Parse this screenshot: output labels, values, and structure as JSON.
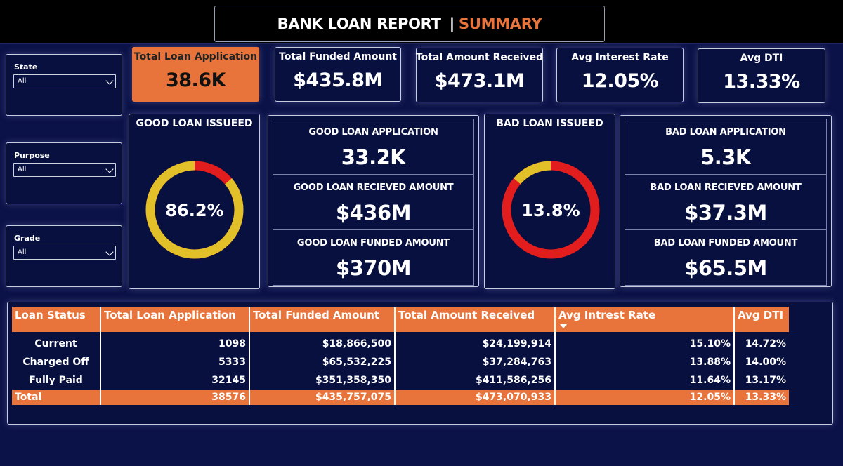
{
  "header": {
    "title": "BANK LOAN REPORT",
    "separator": "|",
    "subtitle": "SUMMARY"
  },
  "filters": [
    {
      "label": "State",
      "value": "All"
    },
    {
      "label": "Purpose",
      "value": "All"
    },
    {
      "label": "Grade",
      "value": "All"
    }
  ],
  "kpis": [
    {
      "label": "Total Loan Application",
      "value": "38.6K"
    },
    {
      "label": "Total Funded Amount",
      "value": "$435.8M"
    },
    {
      "label": "Total Amount Received",
      "value": "$473.1M"
    },
    {
      "label": "Avg Interest Rate",
      "value": "12.05%"
    },
    {
      "label": "Avg DTI",
      "value": "13.33%"
    }
  ],
  "good_loan": {
    "title": "GOOD LOAN ISSUEED",
    "percent_label": "86.2%",
    "percent": 86.2,
    "metrics": [
      {
        "label": "GOOD LOAN APPLICATION",
        "value": "33.2K"
      },
      {
        "label": "GOOD LOAN RECIEVED AMOUNT",
        "value": "$436M"
      },
      {
        "label": "GOOD LOAN FUNDED AMOUNT",
        "value": "$370M"
      }
    ]
  },
  "bad_loan": {
    "title": "BAD LOAN ISSUEED",
    "percent_label": "13.8%",
    "percent": 13.8,
    "metrics": [
      {
        "label": "BAD LOAN APPLICATION",
        "value": "5.3K"
      },
      {
        "label": "BAD LOAN RECIEVED AMOUNT",
        "value": "$37.3M"
      },
      {
        "label": "BAD LOAN FUNDED AMOUNT",
        "value": "$65.5M"
      }
    ]
  },
  "colors": {
    "accent": "#e8743b",
    "good": "#e1c02a",
    "bad": "#e21d1d",
    "background": "#0b1247"
  },
  "table": {
    "headers": [
      "Loan Status",
      "Total Loan Application",
      "Total Funded Amount",
      "Total Amount Received",
      "Avg Intrest Rate",
      "Avg DTI"
    ],
    "rows": [
      [
        "Current",
        "1098",
        "$18,866,500",
        "$24,199,914",
        "15.10%",
        "14.72%"
      ],
      [
        "Charged Off",
        "5333",
        "$65,532,225",
        "$37,284,763",
        "13.88%",
        "14.00%"
      ],
      [
        "Fully Paid",
        "32145",
        "$351,358,350",
        "$411,586,256",
        "11.64%",
        "13.17%"
      ]
    ],
    "total": [
      "Total",
      "38576",
      "$435,757,075",
      "$473,070,933",
      "12.05%",
      "13.33%"
    ]
  }
}
